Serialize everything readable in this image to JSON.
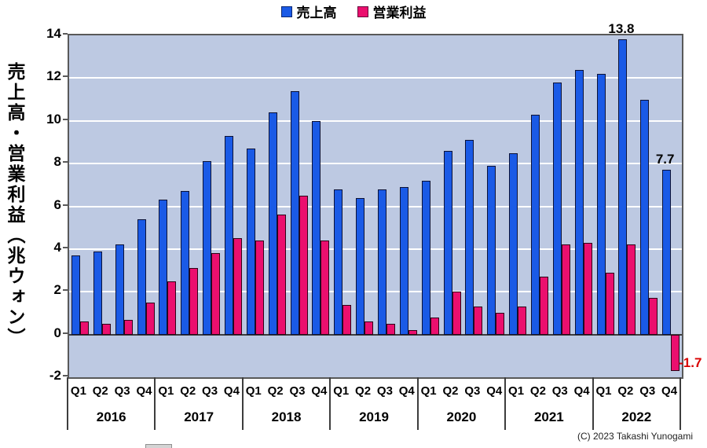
{
  "legend": {
    "items": [
      {
        "label": "売上高",
        "color": "#1a5ae6"
      },
      {
        "label": "営業利益",
        "color": "#eb0f6e"
      }
    ]
  },
  "y_axis": {
    "title": "売上高・営業利益（兆ウォン）",
    "ticks": [
      14,
      12,
      10,
      8,
      6,
      4,
      2,
      0,
      -2
    ]
  },
  "annotations": [
    {
      "text": "13.8",
      "series": "売上高",
      "year": "2022",
      "quarter": "Q2",
      "color": "#000000",
      "position": "above"
    },
    {
      "text": "7.7",
      "series": "売上高",
      "year": "2022",
      "quarter": "Q4",
      "color": "#000000",
      "position": "above"
    },
    {
      "text": "-1.7",
      "series": "営業利益",
      "year": "2022",
      "quarter": "Q4",
      "color": "#d90000",
      "position": "right"
    }
  ],
  "footer": {
    "copyright": "(C) 2023 Takashi Yunogami"
  },
  "chart_data": {
    "type": "bar",
    "title": "",
    "xlabel": "",
    "ylabel": "売上高・営業利益（兆ウォン）",
    "ylim": [
      -2,
      14
    ],
    "grid": true,
    "gridline_values": [
      12,
      10,
      8,
      6,
      4,
      2
    ],
    "legend_position": "top",
    "years": [
      "2016",
      "2017",
      "2018",
      "2019",
      "2020",
      "2021",
      "2022"
    ],
    "quarters": [
      "Q1",
      "Q2",
      "Q3",
      "Q4"
    ],
    "series": [
      {
        "name": "売上高",
        "color": "#1a5ae6",
        "values": [
          3.7,
          3.9,
          4.2,
          5.4,
          6.3,
          6.7,
          8.1,
          9.3,
          8.7,
          10.4,
          11.4,
          10.0,
          6.8,
          6.4,
          6.8,
          6.9,
          7.2,
          8.6,
          9.1,
          7.9,
          8.5,
          10.3,
          11.8,
          12.4,
          12.2,
          13.8,
          11.0,
          7.7
        ]
      },
      {
        "name": "営業利益",
        "color": "#eb0f6e",
        "values": [
          0.6,
          0.5,
          0.7,
          1.5,
          2.5,
          3.1,
          3.8,
          4.5,
          4.4,
          5.6,
          6.5,
          4.4,
          1.4,
          0.6,
          0.5,
          0.2,
          0.8,
          2.0,
          1.3,
          1.0,
          1.3,
          2.7,
          4.2,
          4.3,
          2.9,
          4.2,
          1.7,
          -1.7
        ]
      }
    ]
  }
}
